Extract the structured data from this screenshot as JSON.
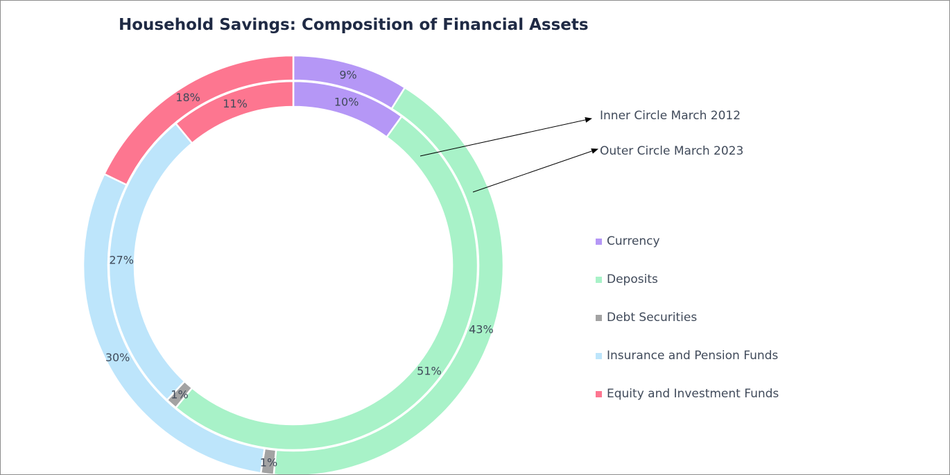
{
  "chart_data": {
    "type": "pie",
    "subtype": "nested-donut",
    "title": "Household Savings: Composition of Financial Assets",
    "categories": [
      "Currency",
      "Deposits",
      "Debt Securities",
      "Insurance and Pension Funds",
      "Equity and Investment Funds"
    ],
    "colors": [
      "#b597f6",
      "#a8f2c8",
      "#a3a3a3",
      "#bde5fb",
      "#fd7690"
    ],
    "series": [
      {
        "ring": "inner",
        "values": [
          10,
          51,
          1,
          27,
          11
        ],
        "labels": [
          "10%",
          "51%",
          "1%",
          "27%",
          "11%"
        ]
      },
      {
        "ring": "outer",
        "values": [
          9,
          43,
          1,
          30,
          18
        ],
        "labels": [
          "9%",
          "43%",
          "1%",
          "30%",
          "18%"
        ]
      }
    ],
    "annotations": [
      "Inner Circle March 2012",
      "Outer Circle March 2023"
    ],
    "legend_position": "right"
  }
}
